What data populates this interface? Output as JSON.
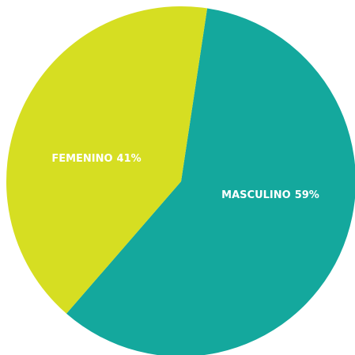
{
  "chart_data": {
    "type": "pie",
    "categories": [
      "MASCULINO",
      "FEMENINO"
    ],
    "values": [
      59,
      41
    ],
    "value_labels": [
      "59%",
      "41%"
    ],
    "colors": [
      "#14a89d",
      "#d6de22"
    ]
  }
}
